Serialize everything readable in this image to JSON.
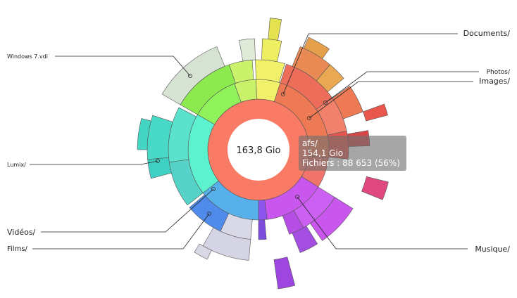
{
  "chart_data": {
    "type": "sunburst",
    "center_label": "163,8 Gio",
    "root_color": "#f97a65",
    "segments": [
      {
        "name": "Musique/",
        "color": "#c957ee",
        "ring": 1
      },
      {
        "name": "Vidéos/",
        "color": "#58b0ea",
        "ring": 1
      },
      {
        "name": "Films/",
        "color": "#d8d8e6",
        "ring": 2
      },
      {
        "name": "Lumix/",
        "color": "#5ae2cc",
        "ring": 2
      },
      {
        "name": "Windows 7.vdi",
        "color": "#d6e2d2",
        "ring": 3
      },
      {
        "name": "Documents/",
        "color": "#f1f06a",
        "ring": 2
      },
      {
        "name": "Images/",
        "color": "#ee7a55",
        "ring": 1
      },
      {
        "name": "Photos/",
        "color": "#e9a851",
        "ring": 2
      }
    ],
    "callouts": [
      {
        "label": "Documents/",
        "side": "right"
      },
      {
        "label": "Photos/",
        "side": "right"
      },
      {
        "label": "Images/",
        "side": "right"
      },
      {
        "label": "Musique/",
        "side": "right"
      },
      {
        "label": "Windows 7.vdi",
        "side": "left"
      },
      {
        "label": "Lumix/",
        "side": "left"
      },
      {
        "label": "Vidéos/",
        "side": "left"
      },
      {
        "label": "Films/",
        "side": "left"
      }
    ]
  },
  "tooltip": {
    "line1": "afs/",
    "line2": "154,1 Gio",
    "line3": "Fichiers : 88 653 (56%)"
  }
}
